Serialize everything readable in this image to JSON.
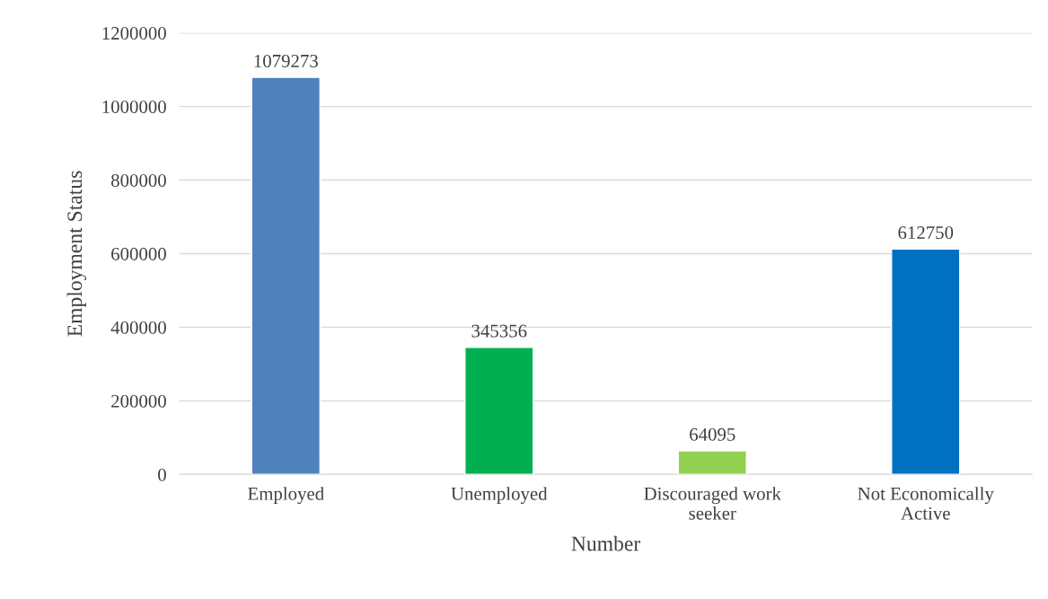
{
  "chart_data": {
    "type": "bar",
    "xlabel": "Number",
    "ylabel": "Employment Status",
    "categories": [
      "Employed",
      "Unemployed",
      "Discouraged work seeker",
      "Not Economically Active"
    ],
    "values": [
      1079273,
      345356,
      64095,
      612750
    ],
    "colors": [
      "#4f81bd",
      "#00b050",
      "#92d050",
      "#0070c0"
    ],
    "ylim": [
      0,
      1200000
    ],
    "yticks": [
      0,
      200000,
      400000,
      600000,
      800000,
      1000000,
      1200000
    ],
    "grid": "y",
    "data_labels": true
  }
}
